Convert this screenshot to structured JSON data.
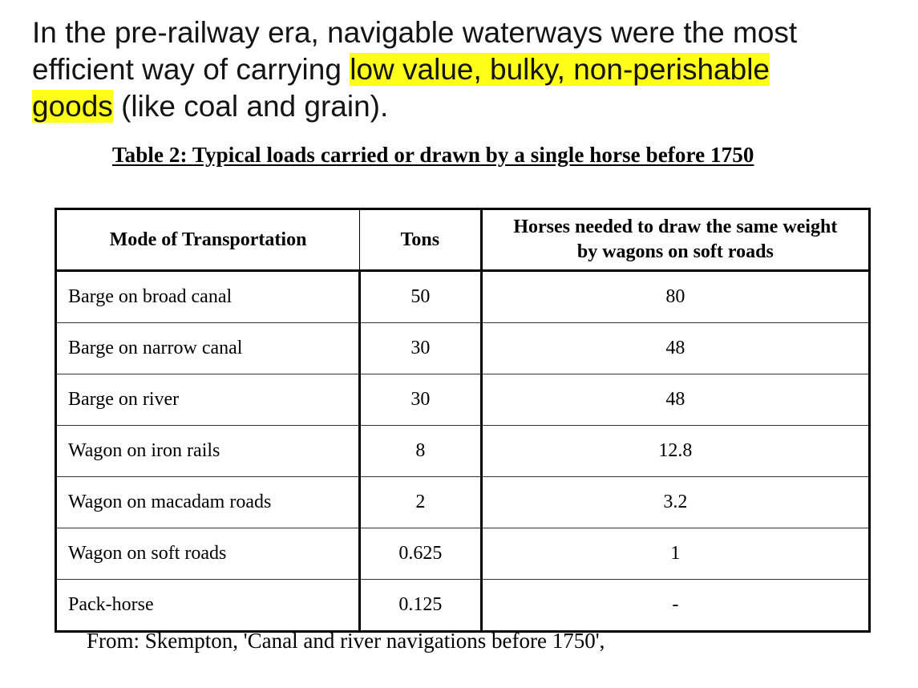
{
  "intro": {
    "before": "In the pre-railway era, navigable waterways were the most efficient way of carrying ",
    "highlight_1": "low value, bulky, non-perishable ",
    "highlight_2": "goods",
    "after": " (like coal and grain).",
    "highlight_color": "#ffff1a"
  },
  "caption": "Table 2: Typical loads carried or drawn by a single horse before 1750",
  "table": {
    "headers": {
      "mode": "Mode of Transportation",
      "tons": "Tons",
      "horses_line1": "Horses needed to draw the same weight",
      "horses_line2": "by wagons on soft roads"
    },
    "rows": [
      {
        "mode": "Barge on broad canal",
        "tons": "50",
        "horses": "80"
      },
      {
        "mode": "Barge on narrow canal",
        "tons": "30",
        "horses": "48"
      },
      {
        "mode": "Barge on river",
        "tons": "30",
        "horses": "48"
      },
      {
        "mode": "Wagon on iron rails",
        "tons": "8",
        "horses": "12.8"
      },
      {
        "mode": "Wagon on macadam roads",
        "tons": "2",
        "horses": "3.2"
      },
      {
        "mode": "Wagon on soft roads",
        "tons": "0.625",
        "horses": "1"
      },
      {
        "mode": "Pack-horse",
        "tons": "0.125",
        "horses": "-"
      }
    ]
  },
  "source": "From: Skempton, 'Canal and river navigations before 1750',"
}
